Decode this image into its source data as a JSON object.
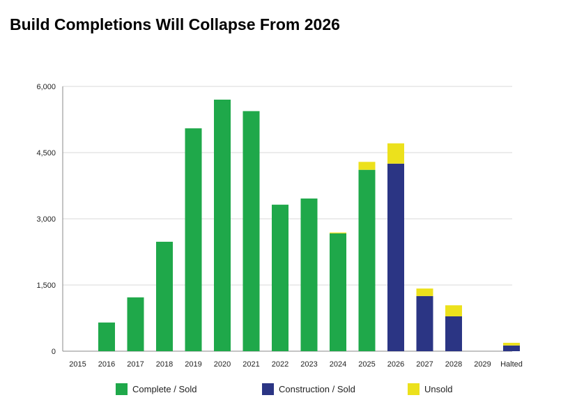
{
  "chart_data": {
    "type": "bar",
    "stacked": true,
    "title": "Build Completions Will Collapse From 2026",
    "categories": [
      "2015",
      "2016",
      "2017",
      "2018",
      "2019",
      "2020",
      "2021",
      "2022",
      "2023",
      "2024",
      "2025",
      "2026",
      "2027",
      "2028",
      "2029",
      "Halted"
    ],
    "series": [
      {
        "name": "Complete / Sold",
        "color": "#1fa84a",
        "values": [
          0,
          650,
          1220,
          2480,
          5050,
          5700,
          5440,
          3320,
          3460,
          2670,
          4110,
          0,
          0,
          0,
          0,
          0
        ]
      },
      {
        "name": "Construction / Sold",
        "color": "#2b3584",
        "values": [
          0,
          0,
          0,
          0,
          0,
          0,
          0,
          0,
          0,
          0,
          0,
          4250,
          1250,
          790,
          0,
          130
        ]
      },
      {
        "name": "Unsold",
        "color": "#ece11c",
        "values": [
          0,
          0,
          0,
          0,
          0,
          0,
          0,
          0,
          0,
          20,
          180,
          460,
          170,
          250,
          0,
          60
        ]
      }
    ],
    "yticks": [
      "0",
      "1,500",
      "3,000",
      "4,500",
      "6,000"
    ],
    "ytick_values": [
      0,
      1500,
      3000,
      4500,
      6000
    ],
    "ylim": [
      0,
      6000
    ],
    "grid": true,
    "legend_position": "bottom"
  }
}
